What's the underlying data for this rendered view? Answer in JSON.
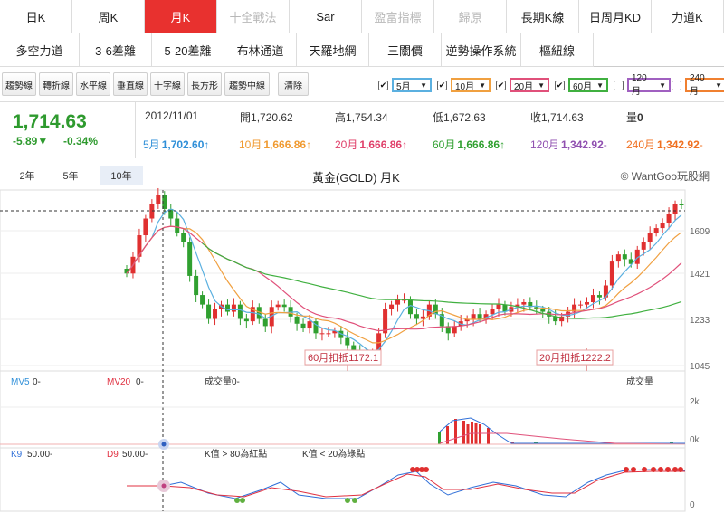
{
  "tabs": {
    "row1": [
      {
        "label": "日K",
        "state": "normal"
      },
      {
        "label": "周K",
        "state": "normal"
      },
      {
        "label": "月K",
        "state": "active"
      },
      {
        "label": "十全戰法",
        "state": "disabled"
      },
      {
        "label": "Sar",
        "state": "normal"
      },
      {
        "label": "盈富指標",
        "state": "disabled"
      },
      {
        "label": "歸原",
        "state": "disabled"
      },
      {
        "label": "長期K線",
        "state": "normal"
      },
      {
        "label": "日周月KD",
        "state": "normal"
      },
      {
        "label": "力道K",
        "state": "normal"
      }
    ],
    "row2": [
      {
        "label": "多空力道"
      },
      {
        "label": "3-6差離"
      },
      {
        "label": "5-20差離"
      },
      {
        "label": "布林通道"
      },
      {
        "label": "天羅地網"
      },
      {
        "label": "三關價"
      },
      {
        "label": "逆勢操作系統"
      },
      {
        "label": "樞紐線"
      }
    ]
  },
  "toolbar": {
    "tools": [
      "趨勢線",
      "轉折線",
      "水平線",
      "垂直線",
      "十字線",
      "長方形",
      "趨勢中線"
    ],
    "clear_label": "清除",
    "ma_selects": [
      {
        "label": "5月",
        "checked": true,
        "color": "#5bb0e0"
      },
      {
        "label": "10月",
        "checked": true,
        "color": "#f0a040"
      },
      {
        "label": "20月",
        "checked": true,
        "color": "#e0507a"
      },
      {
        "label": "60月",
        "checked": true,
        "color": "#40b040"
      },
      {
        "label": "120月",
        "checked": false,
        "color": "#a060c0"
      },
      {
        "label": "240月",
        "checked": false,
        "color": "#f08030"
      }
    ]
  },
  "quote": {
    "price": "1,714.63",
    "change": "-5.89▼",
    "change_pct": "-0.34%",
    "date": "2012/11/01",
    "open_label": "開",
    "open": "1,720.62",
    "high_label": "高",
    "high": "1,754.34",
    "low_label": "低",
    "low": "1,672.63",
    "close_label": "收",
    "close": "1,714.63",
    "volume_label": "量",
    "volume": "0",
    "ma": [
      {
        "label": "5月",
        "value": "1,702.60",
        "arrow": "↑",
        "color": "#2f8fd8"
      },
      {
        "label": "10月",
        "value": "1,666.86",
        "arrow": "↑",
        "color": "#f09a30"
      },
      {
        "label": "20月",
        "value": "1,666.86",
        "arrow": "↑",
        "color": "#e0406a"
      },
      {
        "label": "60月",
        "value": "1,666.86",
        "arrow": "↑",
        "color": "#30a030"
      },
      {
        "label": "120月",
        "value": "1,342.92",
        "arrow": "-",
        "color": "#9050b0"
      },
      {
        "label": "240月",
        "value": "1,342.92",
        "arrow": "-",
        "color": "#f07020"
      }
    ]
  },
  "chart_header": {
    "ranges": [
      {
        "label": "2年",
        "selected": false
      },
      {
        "label": "5年",
        "selected": false
      },
      {
        "label": "10年",
        "selected": true
      }
    ],
    "title": "黃金(GOLD) 月K",
    "credit": "© WantGoo玩股網"
  },
  "chart_data": {
    "type": "candlestick",
    "y_ticks": [
      "1609",
      "1421",
      "1233",
      "1045"
    ],
    "ylim": [
      1045,
      1800
    ],
    "annotations": [
      {
        "text": "60月扣抵1172.1",
        "index": 35
      },
      {
        "text": "20月扣抵1222.2",
        "index": 73
      }
    ],
    "volume_panel": {
      "labels": [
        {
          "text": "MV5",
          "value": "0-"
        },
        {
          "text": "MV20",
          "value": "0-"
        }
      ],
      "title": "成交量0-",
      "right_title": "成交量",
      "y_ticks": [
        "2k",
        "0k"
      ]
    },
    "kd_panel": {
      "k_label": "K9",
      "k_value": "50.00-",
      "d_label": "D9",
      "d_value": "50.00-",
      "note_red": "K值 > 80為紅點",
      "note_green": "K值 < 20為綠點",
      "y_ticks": [
        "0"
      ]
    }
  }
}
